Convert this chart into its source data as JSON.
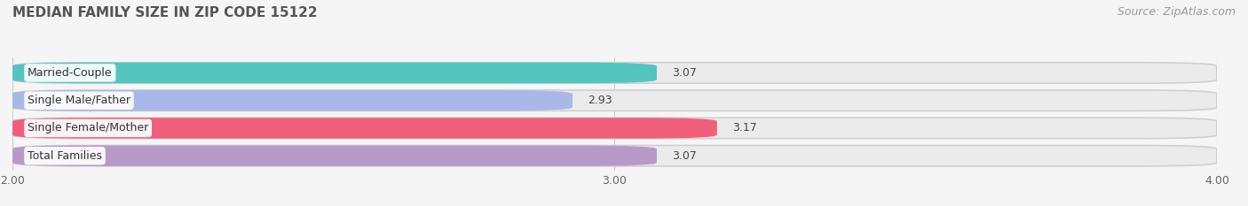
{
  "title": "MEDIAN FAMILY SIZE IN ZIP CODE 15122",
  "source": "Source: ZipAtlas.com",
  "categories": [
    "Married-Couple",
    "Single Male/Father",
    "Single Female/Mother",
    "Total Families"
  ],
  "values": [
    3.07,
    2.93,
    3.17,
    3.07
  ],
  "bar_colors": [
    "#52c5c0",
    "#a8b8e8",
    "#f0607a",
    "#b89ac8"
  ],
  "bar_bg_color": "#e8e8e8",
  "xlim": [
    2.0,
    4.0
  ],
  "xticks": [
    2.0,
    3.0,
    4.0
  ],
  "xtick_labels": [
    "2.00",
    "3.00",
    "4.00"
  ],
  "label_fontsize": 9,
  "value_fontsize": 9,
  "title_fontsize": 11,
  "source_fontsize": 9,
  "background_color": "#f5f5f5"
}
